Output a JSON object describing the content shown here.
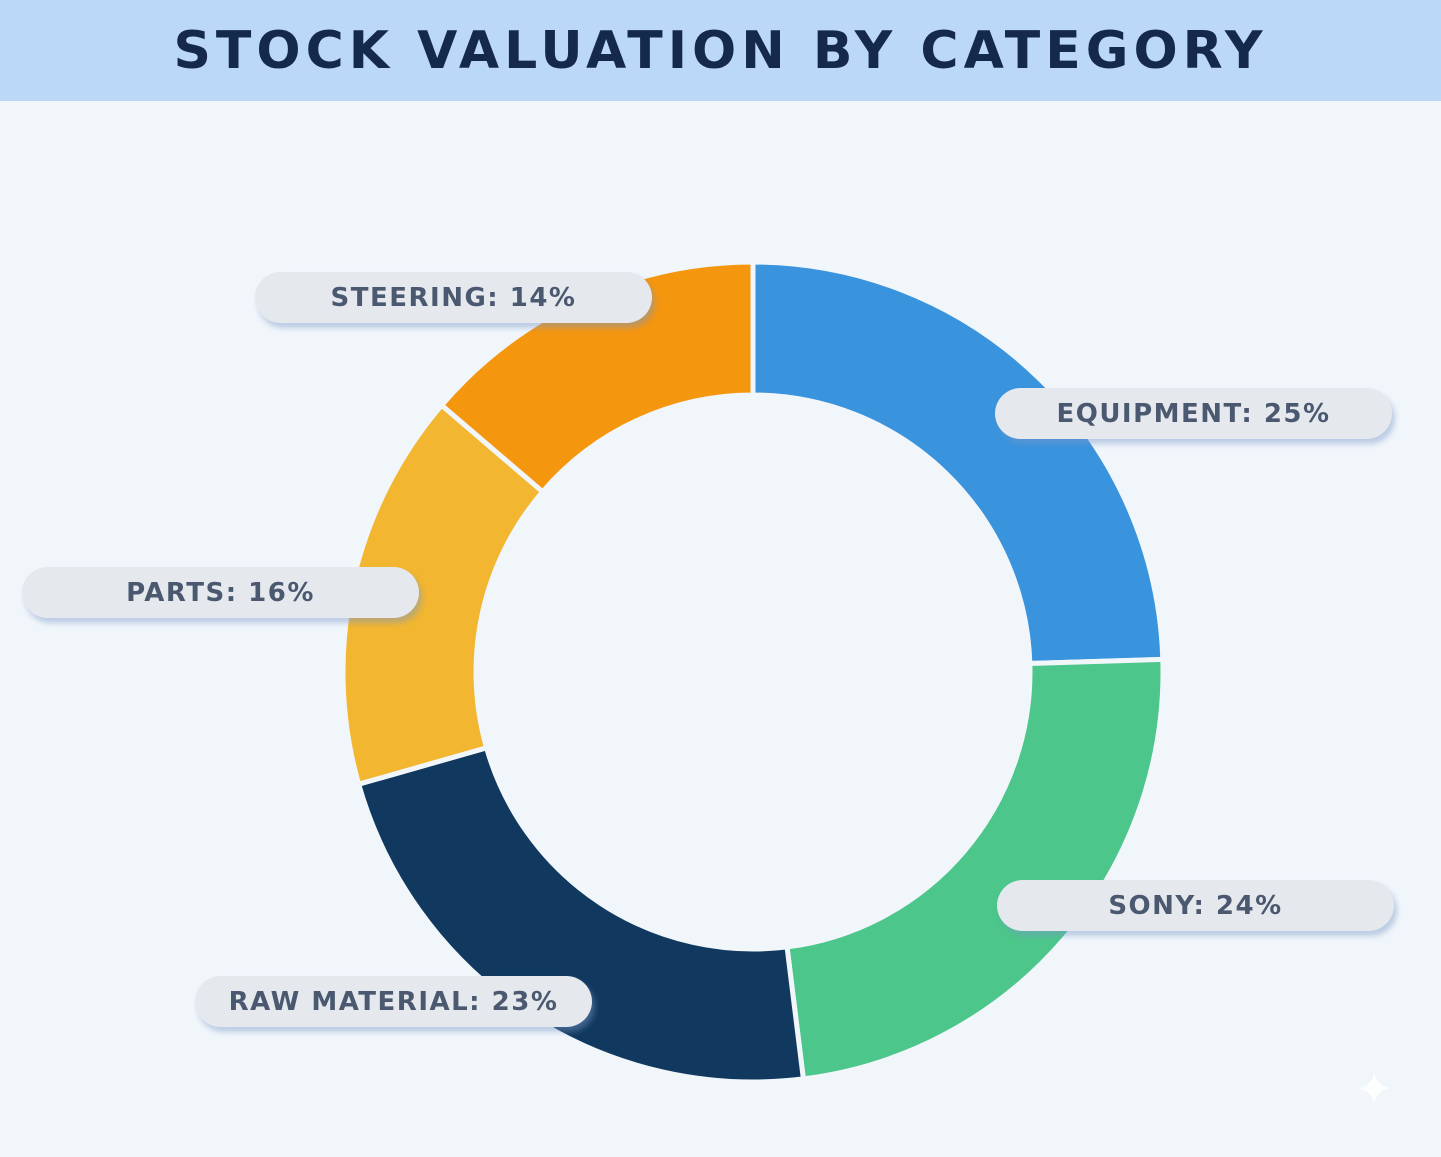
{
  "chart_data": {
    "type": "pie",
    "style": "donut",
    "title": "STOCK VALUATION BY CATEGORY",
    "start": "top",
    "direction": "clockwise",
    "slices": [
      {
        "label": "EQUIPMENT: 25%",
        "name": "EQUIPMENT",
        "value": 25,
        "color": "#3a93dd"
      },
      {
        "label": "SONY: 24%",
        "name": "SONY",
        "value": 24,
        "color": "#4cc68a"
      },
      {
        "label": "RAW MATERIAL: 23%",
        "name": "RAW MATERIAL",
        "value": 23,
        "color": "#11395f"
      },
      {
        "label": "PARTS: 16%",
        "name": "PARTS",
        "value": 16,
        "color": "#f2b630"
      },
      {
        "label": "STEERING: 14%",
        "name": "STEERING",
        "value": 14,
        "color": "#f5960f"
      }
    ],
    "legend": "none"
  }
}
